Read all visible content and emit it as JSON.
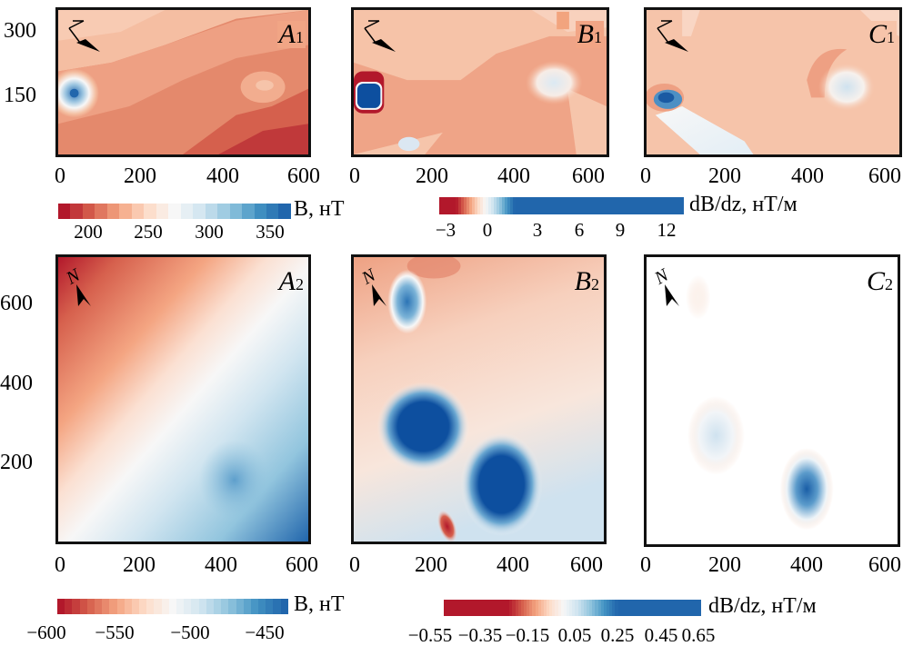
{
  "chart_data": [
    {
      "type": "heatmap",
      "id": "A1",
      "label": "A",
      "label_sub": "1",
      "x_ticks": [
        "0",
        "200",
        "400",
        "600"
      ],
      "xlim": [
        0,
        600
      ],
      "y_ticks": [
        "150",
        "300"
      ],
      "ylim": [
        0,
        350
      ],
      "colorbar": "cb1",
      "background": "#e08568",
      "anomalies": [
        {
          "x": 35,
          "y": 150,
          "kind": "positive-peak",
          "color": "#2b6db0"
        },
        {
          "x": 500,
          "y": 180,
          "kind": "local-high",
          "color": "#f1b293"
        },
        {
          "x": 480,
          "y": 20,
          "kind": "low",
          "color": "#c0393a"
        }
      ]
    },
    {
      "type": "heatmap",
      "id": "B1",
      "label": "B",
      "label_sub": "1",
      "x_ticks": [
        "0",
        "200",
        "400",
        "600"
      ],
      "xlim": [
        0,
        600
      ],
      "ylim": [
        0,
        350
      ],
      "colorbar": "cb2",
      "background": "#f2a88a",
      "anomalies": [
        {
          "x": 25,
          "y": 150,
          "kind": "strong-positive",
          "color": "#0d4f9f"
        },
        {
          "x": 490,
          "y": 190,
          "kind": "weak-positive",
          "color": "#dceaf3"
        },
        {
          "x": 130,
          "y": 30,
          "kind": "weak-positive",
          "color": "#d6e6f2"
        }
      ]
    },
    {
      "type": "heatmap",
      "id": "C1",
      "label": "C",
      "label_sub": "1",
      "x_ticks": [
        "0",
        "200",
        "400",
        "600"
      ],
      "xlim": [
        0,
        600
      ],
      "ylim": [
        0,
        350
      ],
      "colorbar": "cb2",
      "background": "#f6c2a7",
      "anomalies": [
        {
          "x": 40,
          "y": 150,
          "kind": "positive",
          "color": "#2166ac"
        },
        {
          "x": 500,
          "y": 190,
          "kind": "weak-positive",
          "color": "#dbe9f3"
        }
      ]
    },
    {
      "type": "heatmap",
      "id": "A2",
      "label": "A",
      "label_sub": "2",
      "x_ticks": [
        "0",
        "200",
        "400",
        "600"
      ],
      "xlim": [
        0,
        600
      ],
      "y_ticks": [
        "200",
        "400",
        "600"
      ],
      "ylim": [
        0,
        700
      ],
      "colorbar": "cb3",
      "gradient": "regional field decreasing from NW (red) to SE (blue)",
      "anomalies": [
        {
          "x": 420,
          "y": 140,
          "kind": "local-high",
          "color": "#5e9fcc"
        }
      ]
    },
    {
      "type": "heatmap",
      "id": "B2",
      "label": "B",
      "label_sub": "2",
      "x_ticks": [
        "0",
        "200",
        "400",
        "600"
      ],
      "xlim": [
        0,
        600
      ],
      "ylim": [
        0,
        700
      ],
      "colorbar": "cb4",
      "background": "#f6cdb8",
      "anomalies": [
        {
          "x": 150,
          "y": 600,
          "kind": "positive",
          "color": "#3a7ebb"
        },
        {
          "x": 200,
          "y": 280,
          "kind": "strong-positive",
          "color": "#0d4f9f"
        },
        {
          "x": 400,
          "y": 140,
          "kind": "strong-positive",
          "color": "#0d4f9f"
        },
        {
          "x": 280,
          "y": 30,
          "kind": "strong-negative",
          "color": "#b2182b"
        }
      ]
    },
    {
      "type": "heatmap",
      "id": "C2",
      "label": "C",
      "label_sub": "2",
      "x_ticks": [
        "0",
        "200",
        "400",
        "600"
      ],
      "xlim": [
        0,
        600
      ],
      "ylim": [
        0,
        700
      ],
      "colorbar": "cb4",
      "background": "#eea184",
      "anomalies": [
        {
          "x": 200,
          "y": 270,
          "kind": "weak-positive",
          "color": "#cfe2ef"
        },
        {
          "x": 410,
          "y": 130,
          "kind": "positive",
          "color": "#2a6fb2"
        }
      ]
    }
  ],
  "colorbars": {
    "cb1": {
      "unit": "B, нТ",
      "ticks": [
        "200",
        "250",
        "300",
        "350"
      ],
      "range": [
        190,
        380
      ],
      "levels": 19
    },
    "cb2": {
      "unit": "dB/dz, нТ/м",
      "ticks": [
        "−3",
        "0",
        "3",
        "6",
        "9",
        "12"
      ],
      "range": [
        -3,
        14
      ]
    },
    "cb3": {
      "unit": "B, нТ",
      "ticks": [
        "−600",
        "−550",
        "−500",
        "−450"
      ],
      "range": [
        -605,
        -440
      ],
      "levels": 31
    },
    "cb4": {
      "unit": "dB/dz, нТ/м",
      "ticks": [
        "−0.55",
        "−0.35",
        "−0.15",
        "0.05",
        "0.25",
        "0.45",
        "0.65"
      ],
      "range": [
        -0.65,
        0.75
      ]
    }
  },
  "north_label": "N"
}
